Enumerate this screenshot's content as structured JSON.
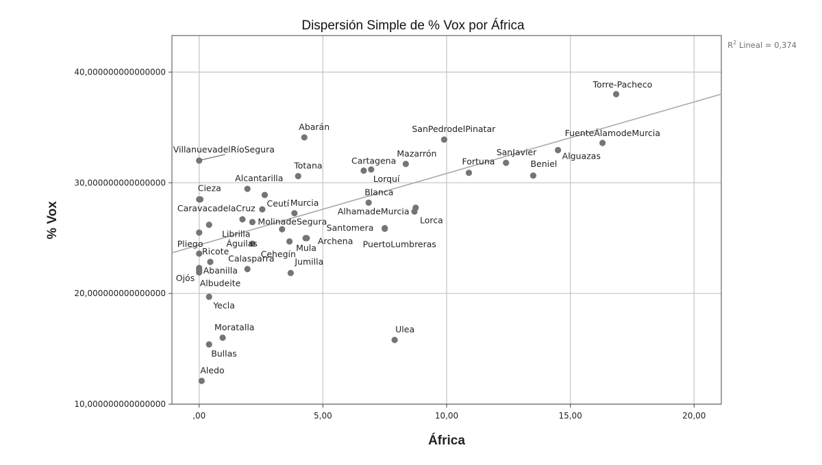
{
  "chart_data": {
    "type": "scatter",
    "title": "Dispersión Simple de % Vox por África",
    "xlabel": "África",
    "ylabel": "% Vox",
    "xlim": [
      -1.1,
      21.1
    ],
    "ylim": [
      10,
      43.3
    ],
    "x_ticks": [
      0,
      5,
      10,
      15,
      20
    ],
    "x_tick_labels": [
      ",00",
      "5,00",
      "10,00",
      "15,00",
      "20,00"
    ],
    "y_ticks": [
      10,
      20,
      30,
      40
    ],
    "y_tick_labels": [
      "10,000000000000000",
      "20,000000000000000",
      "30,000000000000000",
      "40,000000000000000"
    ],
    "grid": true,
    "marker_color": "#757575",
    "line_color": "#a8a8a8",
    "fit_line": {
      "intercept": 24.38,
      "slope": 0.646,
      "label_prefix": "R",
      "label_sup": "2",
      "label_text": " Lineal = 0,374"
    },
    "points": [
      {
        "name": "Torre-Pacheco",
        "x": 16.85,
        "y": 38.0,
        "ldx": -34,
        "ldy": -10
      },
      {
        "name": "FuenteÁlamodeMurcia",
        "x": 16.3,
        "y": 33.6,
        "ldx": -55,
        "ldy": -10
      },
      {
        "name": "Alguazas",
        "x": 14.5,
        "y": 32.95,
        "ldx": 6,
        "ldy": 13
      },
      {
        "name": "SanJavier",
        "x": 12.4,
        "y": 31.8,
        "ldx": -14,
        "ldy": -11
      },
      {
        "name": "Beniel",
        "x": 13.5,
        "y": 30.65,
        "ldx": -4,
        "ldy": -13
      },
      {
        "name": "Fortuna",
        "x": 10.9,
        "y": 30.9,
        "ldx": -10,
        "ldy": -12
      },
      {
        "name": "SanPedrodelPinatar",
        "x": 9.9,
        "y": 33.9,
        "ldx": -47,
        "ldy": -11
      },
      {
        "name": "Mazarrón",
        "x": 8.35,
        "y": 31.7,
        "ldx": -13,
        "ldy": -11
      },
      {
        "name": "Cartagena",
        "x": 6.65,
        "y": 31.1,
        "ldx": -18,
        "ldy": -10
      },
      {
        "name": "Lorquí",
        "x": 6.95,
        "y": 31.2,
        "ldx": 3,
        "ldy": 18
      },
      {
        "name": "Blanca",
        "x": 6.85,
        "y": 28.2,
        "ldx": -6,
        "ldy": -11
      },
      {
        "name": "AlhamadeMurcia",
        "x": 8.75,
        "y": 27.75,
        "ldx": -114,
        "ldy": 10
      },
      {
        "name": "Lorca",
        "x": 8.7,
        "y": 27.4,
        "ldx": 8,
        "ldy": 17
      },
      {
        "name": "Santomera",
        "x": 7.5,
        "y": 25.9,
        "ldx": -85,
        "ldy": 4
      },
      {
        "name": "PuertoLumbreras",
        "x": 7.5,
        "y": 25.85,
        "ldx": -32,
        "ldy": 27
      },
      {
        "name": "Abarán",
        "x": 4.25,
        "y": 34.1,
        "ldx": -8,
        "ldy": -11
      },
      {
        "name": "Totana",
        "x": 4.0,
        "y": 30.6,
        "ldx": -6,
        "ldy": -11
      },
      {
        "name": "Alcantarilla",
        "x": 1.95,
        "y": 29.45,
        "ldx": -18,
        "ldy": -11
      },
      {
        "name": "Murcia",
        "x": 3.85,
        "y": 27.25,
        "ldx": -6,
        "ldy": -11
      },
      {
        "name": "Ceutí",
        "x": 2.65,
        "y": 28.9,
        "ldx": 3,
        "ldy": 17
      },
      {
        "name": "CaravacadelaCruz",
        "x": 2.55,
        "y": 27.6,
        "ldx": -124,
        "ldy": 3
      },
      {
        "name": "MolinadeSegura",
        "x": 2.15,
        "y": 26.45,
        "ldx": 8,
        "ldy": 4
      },
      {
        "name": "Librilla",
        "x": 1.75,
        "y": 26.7,
        "ldx": -30,
        "ldy": 26
      },
      {
        "name": "Cieza",
        "x": 0.0,
        "y": 28.5,
        "ldx": -2,
        "ldy": -12
      },
      {
        "name": "Águilas",
        "x": 2.15,
        "y": 24.5,
        "ldx": -38,
        "ldy": 4
      },
      {
        "name": "Cehegín",
        "x": 3.65,
        "y": 24.7,
        "ldx": -42,
        "ldy": 23
      },
      {
        "name": "Mula",
        "x": 4.3,
        "y": 25.0,
        "ldx": -14,
        "ldy": 19
      },
      {
        "name": "Archena",
        "x": 4.35,
        "y": 25.0,
        "ldx": 16,
        "ldy": 9
      },
      {
        "name": "Jumilla",
        "x": 3.7,
        "y": 21.85,
        "ldx": 6,
        "ldy": -12
      },
      {
        "name": "Calasparra",
        "x": 1.95,
        "y": 22.2,
        "ldx": -28,
        "ldy": -11
      },
      {
        "name": "Ricote",
        "x": 0.45,
        "y": 22.85,
        "ldx": -12,
        "ldy": -11
      },
      {
        "name": "Abanilla",
        "x": 0.0,
        "y": 22.1,
        "ldx": 6,
        "ldy": 5
      },
      {
        "name": "Albudeite",
        "x": 0.0,
        "y": 21.9,
        "ldx": 1,
        "ldy": 20
      },
      {
        "name": "Ojós",
        "x": 0.0,
        "y": 22.3,
        "ldx": -34,
        "ldy": 19
      },
      {
        "name": "Pliego",
        "x": 0.0,
        "y": 23.6,
        "ldx": -32,
        "ldy": -10
      },
      {
        "name": "Yecla",
        "x": 0.4,
        "y": 19.7,
        "ldx": 6,
        "ldy": 17
      },
      {
        "name": "Moratalla",
        "x": 0.95,
        "y": 16.0,
        "ldx": -12,
        "ldy": -11
      },
      {
        "name": "Bullas",
        "x": 0.4,
        "y": 15.4,
        "ldx": 3,
        "ldy": 18
      },
      {
        "name": "Aledo",
        "x": 0.1,
        "y": 12.1,
        "ldx": -2,
        "ldy": -11
      },
      {
        "name": "Ulea",
        "x": 7.9,
        "y": 15.8,
        "ldx": 1,
        "ldy": -11
      },
      {
        "name": "VillanuevadelRíoSegura",
        "x": 0.0,
        "y": 32.0,
        "ldx": -38,
        "ldy": -12
      },
      {
        "name": "",
        "x": 0.05,
        "y": 28.5,
        "ldx": 0,
        "ldy": 0
      },
      {
        "name": "",
        "x": 0.4,
        "y": 26.2,
        "ldx": 0,
        "ldy": 0
      },
      {
        "name": "",
        "x": 0.0,
        "y": 25.5,
        "ldx": 0,
        "ldy": 0
      },
      {
        "name": "",
        "x": 3.35,
        "y": 25.8,
        "ldx": 0,
        "ldy": 0
      }
    ]
  }
}
